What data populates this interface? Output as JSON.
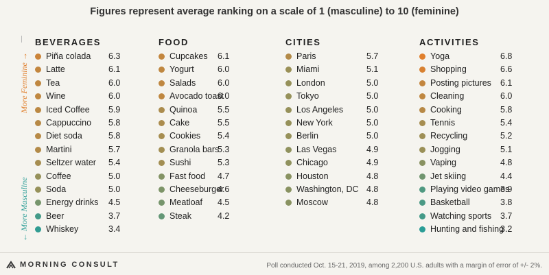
{
  "title": "Figures represent average ranking on a scale of 1 (masculine) to 10 (feminine)",
  "side_labels": {
    "feminine": "More Feminine",
    "masculine": "More Masculine"
  },
  "colors": {
    "background": "#f5f4ef",
    "feminine": "#e07f2c",
    "masculine": "#2a9d96"
  },
  "chart_data": {
    "type": "table",
    "title": "Figures represent average ranking on a scale of 1 (masculine) to 10 (feminine)",
    "scale": [
      1,
      10
    ],
    "groups": [
      {
        "name": "BEVERAGES",
        "items": [
          {
            "label": "Piña colada",
            "value": "6.3"
          },
          {
            "label": "Latte",
            "value": "6.1"
          },
          {
            "label": "Tea",
            "value": "6.0"
          },
          {
            "label": "Wine",
            "value": "6.0"
          },
          {
            "label": "Iced Coffee",
            "value": "5.9"
          },
          {
            "label": "Cappuccino",
            "value": "5.8"
          },
          {
            "label": "Diet soda",
            "value": "5.8"
          },
          {
            "label": "Martini",
            "value": "5.7"
          },
          {
            "label": "Seltzer water",
            "value": "5.4"
          },
          {
            "label": "Coffee",
            "value": "5.0"
          },
          {
            "label": "Soda",
            "value": "5.0"
          },
          {
            "label": "Energy drinks",
            "value": "4.5"
          },
          {
            "label": "Beer",
            "value": "3.7"
          },
          {
            "label": "Whiskey",
            "value": "3.4"
          }
        ]
      },
      {
        "name": "FOOD",
        "items": [
          {
            "label": "Cupcakes",
            "value": "6.1"
          },
          {
            "label": "Yogurt",
            "value": "6.0"
          },
          {
            "label": "Salads",
            "value": "6.0"
          },
          {
            "label": "Avocado toast",
            "value": "6.0"
          },
          {
            "label": "Quinoa",
            "value": "5.5"
          },
          {
            "label": "Cake",
            "value": "5.5"
          },
          {
            "label": "Cookies",
            "value": "5.4"
          },
          {
            "label": "Granola bars",
            "value": "5.3"
          },
          {
            "label": "Sushi",
            "value": "5.3"
          },
          {
            "label": "Fast food",
            "value": "4.7"
          },
          {
            "label": "Cheeseburger",
            "value": "4.6"
          },
          {
            "label": "Meatloaf",
            "value": "4.5"
          },
          {
            "label": "Steak",
            "value": "4.2"
          }
        ]
      },
      {
        "name": "CITIES",
        "items": [
          {
            "label": "Paris",
            "value": "5.7"
          },
          {
            "label": "Miami",
            "value": "5.1"
          },
          {
            "label": "London",
            "value": "5.0"
          },
          {
            "label": "Tokyo",
            "value": "5.0"
          },
          {
            "label": "Los Angeles",
            "value": "5.0"
          },
          {
            "label": "New York",
            "value": "5.0"
          },
          {
            "label": "Berlin",
            "value": "5.0"
          },
          {
            "label": "Las Vegas",
            "value": "4.9"
          },
          {
            "label": "Chicago",
            "value": "4.9"
          },
          {
            "label": "Houston",
            "value": "4.8"
          },
          {
            "label": "Washington, DC",
            "value": "4.8"
          },
          {
            "label": "Moscow",
            "value": "4.8"
          }
        ]
      },
      {
        "name": "ACTIVITIES",
        "items": [
          {
            "label": "Yoga",
            "value": "6.8"
          },
          {
            "label": "Shopping",
            "value": "6.6"
          },
          {
            "label": "Posting pictures",
            "value": "6.1"
          },
          {
            "label": "Cleaning",
            "value": "6.0"
          },
          {
            "label": "Cooking",
            "value": "5.8"
          },
          {
            "label": "Tennis",
            "value": "5.4"
          },
          {
            "label": "Recycling",
            "value": "5.2"
          },
          {
            "label": "Jogging",
            "value": "5.1"
          },
          {
            "label": "Vaping",
            "value": "4.8"
          },
          {
            "label": "Jet skiing",
            "value": "4.4"
          },
          {
            "label": "Playing video games",
            "value": "3.9"
          },
          {
            "label": "Basketball",
            "value": "3.8"
          },
          {
            "label": "Watching sports",
            "value": "3.7"
          },
          {
            "label": "Hunting and fishing",
            "value": "3.2"
          }
        ]
      }
    ]
  },
  "footer": {
    "brand": "MORNING CONSULT",
    "note": "Poll conducted Oct. 15-21, 2019, among 2,200 U.S. adults with a margin of error of +/- 2%."
  }
}
